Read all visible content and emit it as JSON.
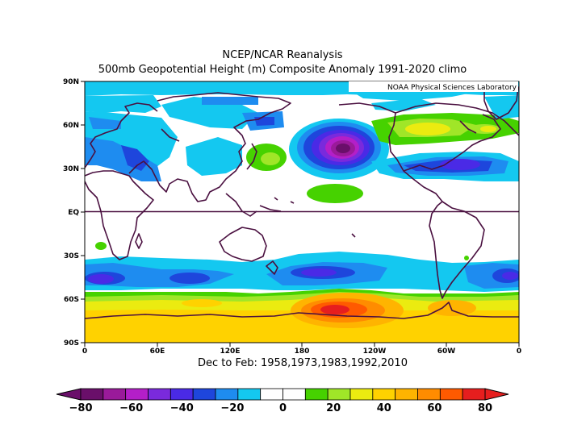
{
  "title_line1": "NCEP/NCAR Reanalysis",
  "title_line2": "500mb Geopotential Height (m) Composite Anomaly 1991-2020 climo",
  "credit": "NOAA Physical Sciences Laboratory",
  "subtitle": "Dec to Feb: 1958,1973,1983,1992,2010",
  "lat_labels": [
    "90N",
    "60N",
    "30N",
    "EQ",
    "30S",
    "60S",
    "90S"
  ],
  "lon_labels": [
    "0",
    "60E",
    "120E",
    "180",
    "120W",
    "60W",
    "0"
  ],
  "colorbar": {
    "tick_labels": [
      "-80",
      "-60",
      "-40",
      "-20",
      "0",
      "20",
      "40",
      "60",
      "80"
    ],
    "colors": [
      "#6a0f6a",
      "#9a1a9a",
      "#b41fc8",
      "#7a2adc",
      "#4a2ae6",
      "#1e46dc",
      "#1e8cf0",
      "#14c8f0",
      "#ffffff",
      "#ffffff",
      "#46d200",
      "#a0e628",
      "#ebeb10",
      "#ffd200",
      "#ffb400",
      "#ff8c00",
      "#ff5a00",
      "#e61e1e"
    ]
  },
  "colors": {
    "coastline": "#4a1040",
    "equator": "#4a1040"
  }
}
